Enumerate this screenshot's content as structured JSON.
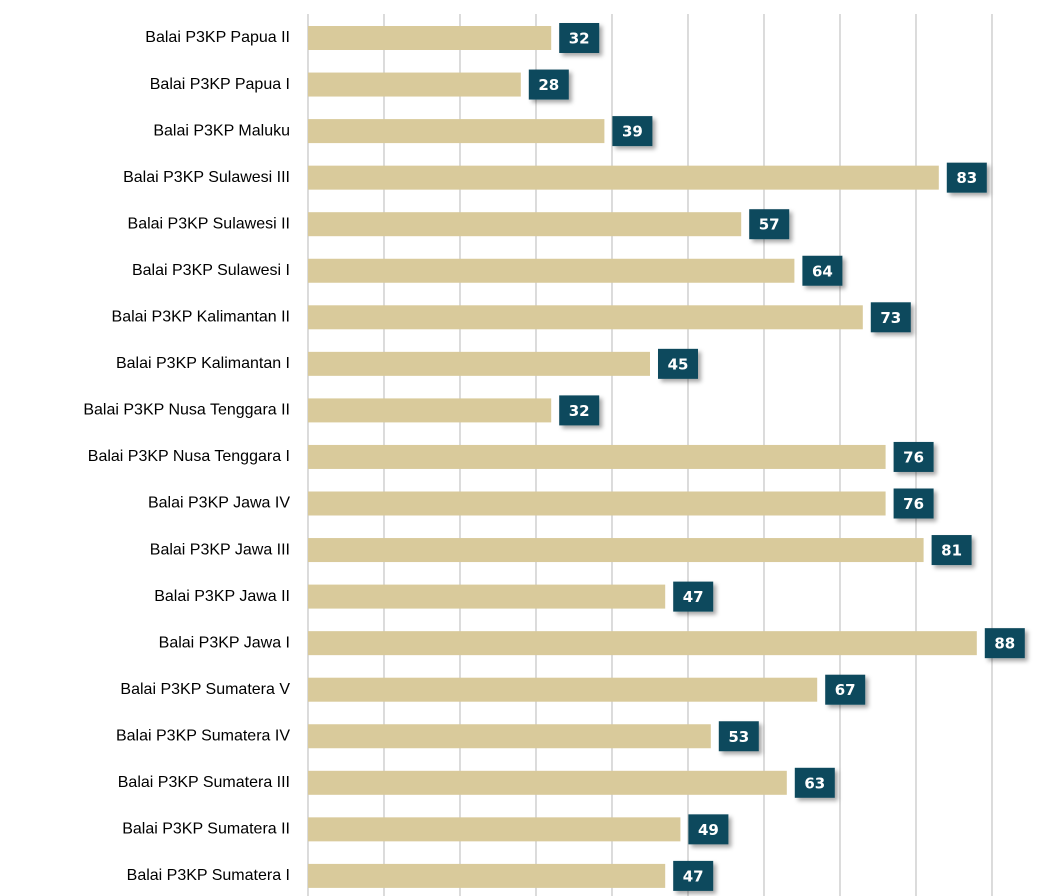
{
  "chart_data": {
    "type": "barh",
    "categories": [
      "Balai P3KP Papua II",
      "Balai P3KP Papua I",
      "Balai P3KP Maluku",
      "Balai P3KP Sulawesi III",
      "Balai P3KP Sulawesi II",
      "Balai P3KP Sulawesi I",
      "Balai P3KP Kalimantan II",
      "Balai P3KP Kalimantan I",
      "Balai P3KP Nusa Tenggara II",
      "Balai P3KP Nusa Tenggara I",
      "Balai P3KP Jawa IV",
      "Balai P3KP Jawa III",
      "Balai P3KP Jawa II",
      "Balai P3KP Jawa I",
      "Balai P3KP Sumatera V",
      "Balai P3KP Sumatera IV",
      "Balai P3KP Sumatera III",
      "Balai P3KP Sumatera II",
      "Balai P3KP Sumatera I"
    ],
    "values": [
      32,
      28,
      39,
      83,
      57,
      64,
      73,
      45,
      32,
      76,
      76,
      81,
      47,
      88,
      67,
      53,
      63,
      49,
      47
    ],
    "color": "#d9ca9b",
    "label_color": "#0e4a5d",
    "xlim": [
      0,
      90
    ],
    "xticks": [
      0,
      10,
      20,
      30,
      40,
      50,
      60,
      70,
      80,
      90
    ],
    "grid": true
  }
}
